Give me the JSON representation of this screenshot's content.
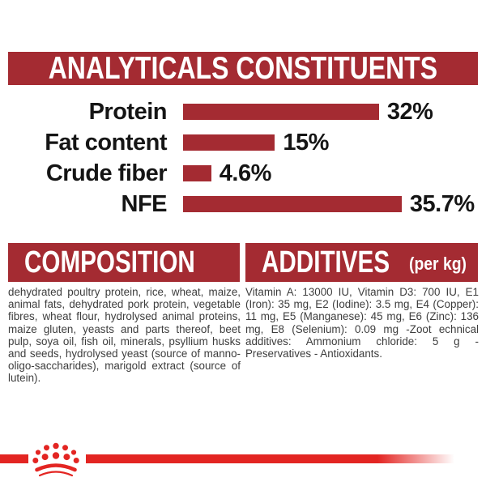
{
  "header": {
    "title": "ANALYTICALS CONSTITUENTS"
  },
  "chart_data": {
    "type": "bar",
    "orientation": "horizontal",
    "title": "ANALYTICALS CONSTITUENTS",
    "categories": [
      "Protein",
      "Fat content",
      "Crude fiber",
      "NFE"
    ],
    "values": [
      32,
      15,
      4.6,
      35.7
    ],
    "value_labels": [
      "32%",
      "15%",
      "4.6%",
      "35.7%"
    ],
    "unit": "%",
    "xlim": [
      0,
      40
    ],
    "grid": false,
    "legend": false,
    "bar_color": "#A42B32",
    "label_color": "#151515"
  },
  "composition": {
    "title": "COMPOSITION",
    "body": "dehydrated poultry protein, rice, wheat, maize, animal fats, dehydrated pork protein, vegetable fibres, wheat flour, hydrolysed animal proteins, maize gluten, yeasts and parts thereof, beet pulp, soya oil, fish oil, minerals, psyllium husks and seeds, hydrolysed yeast (source of manno-oligo-saccharides), marigold extract (source of lutein)."
  },
  "additives": {
    "title": "ADDITIVES",
    "unit_label": "(per kg)",
    "body": "Vitamin A: 13000 IU, Vitamin D3: 700 IU, E1 (Iron): 35 mg, E2 (Iodine): 3.5 mg, E4 (Copper): 11 mg, E5 (Manganese): 45 mg, E6 (Zinc): 136 mg, E8 (Selenium): 0.09 mg -Zoot echnical additives: Ammonium chloride: 5 g - Preservatives - Antioxidants."
  },
  "footer": {
    "logo": "royal-canin-crown-logo"
  },
  "colors": {
    "banner_red": "#A42B32",
    "bar_red": "#A42B32",
    "brand_bright_red": "#E32522",
    "text_dark": "#3d3d3d"
  }
}
